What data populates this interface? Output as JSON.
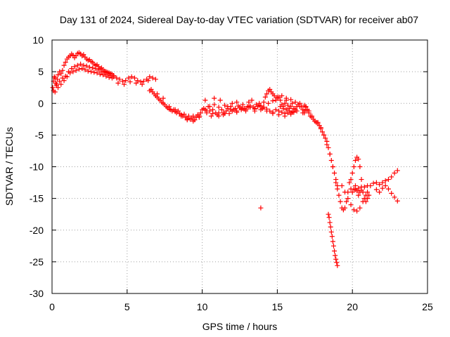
{
  "chart_data": {
    "type": "scatter",
    "title": "Day 131 of 2024, Sidereal Day-to-day VTEC variation (SDTVAR) for receiver ab07",
    "xlabel": "GPS time / hours",
    "ylabel": "SDTVAR / TECUs",
    "xlim": [
      0,
      25
    ],
    "ylim": [
      -30,
      10
    ],
    "xticks": [
      0,
      5,
      10,
      15,
      20,
      25
    ],
    "yticks": [
      -30,
      -25,
      -20,
      -15,
      -10,
      -5,
      0,
      5,
      10
    ],
    "grid": true,
    "marker": "plus",
    "color": "#ff0000",
    "series": [
      {
        "name": "ab07",
        "x": [
          0.05,
          0.1,
          0.15,
          0.2,
          0.25,
          0.3,
          0.35,
          0.4,
          0.5,
          0.6,
          0.7,
          0.8,
          0.9,
          1.0,
          1.1,
          1.2,
          1.3,
          1.4,
          1.5,
          1.6,
          1.7,
          1.8,
          1.9,
          2.0,
          2.1,
          2.2,
          2.3,
          2.4,
          2.5,
          2.6,
          2.7,
          2.8,
          2.9,
          3.0,
          3.1,
          3.2,
          3.3,
          3.4,
          3.5,
          3.6,
          3.7,
          3.8,
          3.9,
          4.0,
          4.1,
          0.1,
          0.3,
          0.5,
          0.7,
          0.9,
          1.1,
          1.3,
          1.5,
          1.7,
          1.9,
          2.1,
          2.3,
          2.5,
          2.7,
          2.9,
          3.1,
          3.3,
          3.5,
          3.7,
          3.9,
          4.1,
          0.2,
          0.4,
          0.6,
          0.8,
          1.0,
          1.2,
          1.4,
          1.6,
          1.8,
          2.0,
          2.2,
          2.4,
          2.6,
          2.8,
          3.0,
          3.2,
          3.4,
          3.6,
          3.8,
          4.0,
          4.3,
          4.5,
          4.7,
          4.9,
          5.1,
          5.3,
          5.5,
          5.7,
          5.9,
          6.1,
          6.3,
          6.5,
          6.7,
          6.9,
          4.4,
          4.8,
          5.2,
          5.6,
          6.0,
          6.4,
          6.5,
          6.6,
          6.7,
          6.8,
          6.9,
          7.0,
          7.1,
          7.2,
          7.3,
          7.4,
          7.5,
          7.6,
          7.7,
          7.8,
          7.9,
          8.0,
          8.1,
          8.2,
          8.3,
          8.4,
          8.5,
          8.6,
          8.7,
          8.8,
          8.9,
          9.0,
          9.1,
          9.2,
          9.3,
          9.4,
          9.5,
          9.6,
          9.7,
          9.8,
          9.9,
          10.0,
          7.0,
          7.4,
          7.8,
          8.2,
          8.6,
          9.0,
          9.4,
          9.8,
          10.1,
          10.2,
          10.3,
          10.4,
          10.5,
          10.6,
          10.7,
          10.8,
          10.9,
          11.0,
          11.1,
          11.2,
          11.3,
          11.4,
          11.5,
          11.6,
          11.7,
          11.8,
          11.9,
          12.0,
          12.1,
          12.2,
          12.3,
          12.4,
          12.5,
          12.6,
          12.7,
          12.8,
          12.9,
          13.0,
          13.1,
          13.2,
          13.3,
          13.4,
          13.5,
          13.6,
          13.7,
          13.8,
          13.9,
          14.0,
          14.1,
          14.2,
          14.3,
          14.4,
          14.5,
          14.6,
          14.7,
          14.8,
          14.9,
          15.0,
          15.1,
          15.2,
          15.3,
          15.4,
          15.5,
          15.6,
          15.7,
          15.8,
          15.9,
          16.0,
          16.1,
          16.2,
          16.3,
          16.4,
          16.5,
          16.6,
          16.7,
          16.8,
          16.9,
          10.2,
          10.5,
          10.8,
          11.1,
          11.4,
          11.7,
          12.0,
          12.3,
          12.6,
          12.9,
          13.2,
          13.5,
          13.8,
          14.1,
          14.4,
          14.7,
          15.0,
          15.3,
          15.6,
          15.9,
          16.2,
          16.5,
          16.8,
          10.3,
          10.7,
          11.1,
          11.5,
          11.9,
          12.3,
          12.7,
          13.1,
          13.5,
          13.9,
          14.3,
          14.7,
          15.1,
          15.5,
          15.9,
          16.3,
          16.7,
          14.1,
          14.3,
          14.5,
          14.7,
          14.9,
          15.1,
          15.3,
          15.5,
          15.7,
          15.9,
          16.1,
          15.2,
          15.4,
          15.6,
          15.8,
          16.0,
          16.8,
          16.9,
          17.0,
          17.1,
          17.2,
          17.3,
          17.4,
          17.5,
          17.6,
          17.7,
          17.8,
          17.9,
          18.0,
          18.1,
          18.2,
          18.3,
          18.4,
          18.5,
          18.6,
          18.7,
          18.8,
          18.9,
          19.0,
          16.9,
          17.1,
          17.3,
          17.5,
          17.7,
          17.9,
          18.1,
          18.3,
          18.5,
          18.7,
          18.9,
          18.4,
          18.45,
          18.5,
          18.55,
          18.6,
          18.65,
          18.7,
          18.75,
          18.8,
          18.85,
          18.9,
          18.95,
          19.0,
          13.9,
          19.0,
          19.1,
          19.2,
          19.3,
          19.4,
          19.5,
          19.6,
          19.7,
          19.8,
          19.9,
          20.0,
          20.1,
          20.2,
          20.3,
          20.4,
          20.5,
          20.6,
          20.7,
          20.8,
          20.9,
          21.0,
          21.1,
          19.3,
          19.5,
          19.7,
          19.9,
          20.1,
          20.3,
          20.5,
          20.7,
          20.9,
          19.9,
          20.0,
          20.1,
          20.2,
          20.3,
          20.4,
          20.5,
          20.6,
          20.2,
          20.4,
          20.6,
          20.8,
          21.0,
          21.0,
          21.2,
          21.4,
          21.6,
          21.8,
          22.0,
          22.2,
          22.4,
          22.6,
          22.8,
          23.0,
          21.6,
          21.8,
          22.0,
          22.2,
          22.4,
          22.6,
          22.8,
          23.0
        ],
        "y": [
          2.5,
          3.5,
          4.2,
          4.0,
          3.2,
          3.0,
          3.8,
          4.5,
          5.0,
          4.7,
          5.2,
          6.0,
          6.5,
          7.0,
          7.3,
          7.5,
          7.8,
          7.6,
          7.2,
          7.5,
          7.9,
          8.0,
          7.8,
          7.5,
          7.7,
          7.3,
          7.0,
          6.8,
          6.9,
          6.6,
          6.5,
          6.2,
          6.0,
          6.1,
          5.8,
          5.5,
          5.6,
          5.3,
          5.1,
          5.0,
          4.9,
          4.8,
          4.7,
          4.6,
          4.4,
          2.0,
          2.8,
          3.5,
          4.0,
          4.3,
          5.0,
          5.5,
          5.8,
          6.0,
          6.2,
          6.0,
          5.9,
          5.7,
          5.6,
          5.5,
          5.3,
          5.0,
          4.8,
          4.6,
          4.4,
          4.2,
          1.8,
          2.5,
          3.0,
          3.6,
          4.2,
          4.8,
          5.0,
          5.2,
          5.4,
          5.5,
          5.3,
          5.1,
          5.0,
          4.9,
          4.8,
          4.6,
          4.5,
          4.3,
          4.1,
          4.0,
          4.0,
          3.8,
          3.5,
          3.6,
          4.0,
          4.2,
          4.0,
          3.6,
          3.4,
          3.5,
          3.8,
          4.2,
          4.0,
          3.8,
          3.2,
          3.0,
          3.4,
          3.2,
          3.0,
          3.6,
          2.0,
          2.2,
          1.8,
          1.5,
          1.2,
          1.0,
          0.7,
          0.5,
          0.2,
          0.0,
          -0.2,
          -0.5,
          -0.7,
          -0.9,
          -1.0,
          -1.2,
          -1.0,
          -1.3,
          -1.5,
          -1.2,
          -1.6,
          -1.8,
          -2.0,
          -1.7,
          -2.2,
          -2.4,
          -2.0,
          -2.5,
          -2.3,
          -2.0,
          -2.6,
          -2.2,
          -1.8,
          -2.0,
          -1.5,
          -1.0,
          1.5,
          0.8,
          -0.5,
          -1.0,
          -2.0,
          -2.6,
          -2.8,
          -2.2,
          -0.8,
          -1.0,
          -1.5,
          -0.5,
          -1.2,
          -2.0,
          -1.0,
          -0.2,
          -1.5,
          -1.8,
          -0.6,
          0.5,
          -1.0,
          -1.5,
          -0.3,
          -1.2,
          -0.8,
          -1.6,
          -0.5,
          0.0,
          -1.0,
          -0.8,
          -1.2,
          -0.4,
          -0.6,
          -1.0,
          -0.2,
          -0.8,
          -1.2,
          -0.5,
          0.2,
          -0.4,
          0.5,
          -0.6,
          -0.8,
          -0.2,
          -0.5,
          0.0,
          -0.4,
          -0.8,
          0.2,
          1.0,
          1.5,
          2.0,
          2.2,
          1.8,
          1.5,
          1.2,
          0.5,
          0.8,
          1.0,
          0.5,
          -0.2,
          -0.5,
          0.0,
          0.5,
          -0.3,
          -0.8,
          -0.5,
          0.0,
          -0.8,
          -1.0,
          -0.5,
          -0.2,
          0.0,
          -0.5,
          -1.0,
          -1.5,
          -1.0,
          0.5,
          -0.5,
          0.8,
          -1.5,
          -1.8,
          -0.5,
          -1.2,
          0.2,
          -0.8,
          -1.0,
          -0.6,
          -0.9,
          -0.3,
          -0.6,
          0.0,
          0.4,
          1.0,
          1.2,
          0.8,
          0.6,
          0.2,
          -0.5,
          -1.2,
          -1.2,
          -1.6,
          -2.0,
          -1.6,
          -1.0,
          -1.4,
          -0.8,
          -0.6,
          -1.2,
          -1.0,
          -1.2,
          -1.6,
          -1.8,
          -2.0,
          -1.5,
          -1.2,
          -1.5,
          -0.6,
          -0.9,
          -1.2,
          -1.4,
          -1.0,
          -1.2,
          -1.4,
          -1.6,
          -1.5,
          -1.7,
          -1.4,
          -0.5,
          -0.8,
          -1.0,
          -1.2,
          -1.3,
          -0.3,
          -0.5,
          -1.0,
          -1.5,
          -2.0,
          -2.2,
          -2.5,
          -2.8,
          -3.0,
          -3.2,
          -3.5,
          -4.0,
          -4.5,
          -5.0,
          -5.5,
          -6.0,
          -7.0,
          -8.0,
          -9.0,
          -10.0,
          -11.0,
          -12.0,
          -13.0,
          -0.6,
          -1.2,
          -2.0,
          -2.8,
          -3.0,
          -3.8,
          -5.0,
          -6.5,
          -8.0,
          -10.0,
          -12.5,
          -17.5,
          -18.0,
          -18.8,
          -19.5,
          -20.3,
          -21.0,
          -21.8,
          -22.5,
          -23.3,
          -24.0,
          -24.6,
          -25.1,
          -25.6,
          -16.5,
          -13.5,
          -14.5,
          -15.5,
          -16.5,
          -16.8,
          -16.5,
          -15.5,
          -14.0,
          -12.5,
          -12.0,
          -11.0,
          -10.0,
          -9.0,
          -8.5,
          -8.8,
          -10.0,
          -12.0,
          -14.0,
          -15.0,
          -15.5,
          -15.0,
          -14.5,
          -13.0,
          -14.0,
          -15.0,
          -16.0,
          -16.8,
          -17.0,
          -16.5,
          -15.5,
          -14.5,
          -13.5,
          -14.0,
          -13.5,
          -13.0,
          -13.8,
          -14.5,
          -14.0,
          -13.2,
          -13.6,
          -13.4,
          -13.7,
          -13.2,
          -13.0,
          -14.0,
          -13.0,
          -12.6,
          -12.5,
          -12.8,
          -12.5,
          -12.2,
          -12.0,
          -11.6,
          -11.0,
          -10.6,
          -13.6,
          -14.0,
          -13.4,
          -13.0,
          -13.5,
          -14.2,
          -14.8,
          -15.4
        ]
      }
    ]
  }
}
